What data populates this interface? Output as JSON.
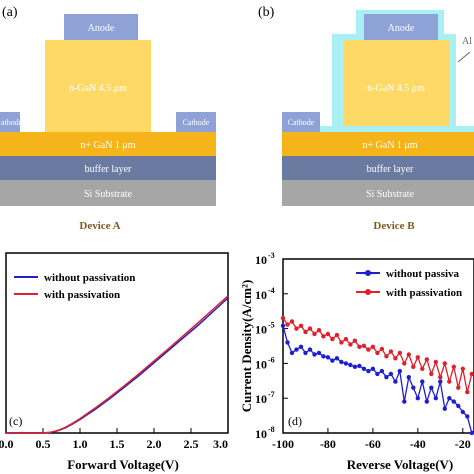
{
  "panels": {
    "a": {
      "label": "(a)",
      "caption": "Device A",
      "anode": "Anode",
      "ngan": "n-GaN  4.5 μm",
      "cathode_left": "athode",
      "cathode_right": "Cathode",
      "nplus": "n+ GaN  1 μm",
      "buffer": "buffer layer",
      "substrate": "Si Substrate"
    },
    "b": {
      "label": "(b)",
      "caption": "Device B",
      "anode": "Anode",
      "ngan": "n-GaN  4.5 μm",
      "cathode_left": "Cathode",
      "nplus": "n+ GaN  1 μm",
      "buffer": "buffer layer",
      "substrate": "Si Substrate",
      "passivation_label": "Al"
    }
  },
  "colors": {
    "anode": "#8ea2d8",
    "ngan": "#ffd966",
    "nplus": "#f4b41a",
    "buffer": "#6b7aa1",
    "substrate": "#a6a6a6",
    "passivation": "#a9f0f5",
    "caption": "#7f5a1e",
    "blue_series": "#1f1fd0",
    "red_series": "#e0202a"
  },
  "chart_data": [
    {
      "panel": "c",
      "type": "line",
      "panel_label": "(c)",
      "xlabel": "Forward Voltage(V)",
      "ylabel": "",
      "xlim": [
        0.0,
        3.0
      ],
      "ylim": [
        0,
        1
      ],
      "xticks": [
        "0.0",
        "0.5",
        "1.0",
        "1.5",
        "2.0",
        "2.5",
        "3.0"
      ],
      "legend_position": "top-left",
      "series": [
        {
          "name": "without passivation",
          "color": "#1f1fd0",
          "x": [
            0.0,
            0.5,
            0.6,
            0.7,
            0.8,
            0.9,
            1.0,
            1.2,
            1.4,
            1.6,
            1.8,
            2.0,
            2.2,
            2.4,
            2.6,
            2.8,
            3.0
          ],
          "y": [
            0.0,
            0.0,
            0.003,
            0.012,
            0.028,
            0.05,
            0.075,
            0.13,
            0.19,
            0.255,
            0.32,
            0.39,
            0.46,
            0.53,
            0.6,
            0.675,
            0.75
          ]
        },
        {
          "name": "with passivation",
          "color": "#e0202a",
          "x": [
            0.0,
            0.5,
            0.6,
            0.7,
            0.8,
            0.9,
            1.0,
            1.2,
            1.4,
            1.6,
            1.8,
            2.0,
            2.2,
            2.4,
            2.6,
            2.8,
            3.0
          ],
          "y": [
            0.0,
            0.0,
            0.004,
            0.014,
            0.031,
            0.054,
            0.08,
            0.137,
            0.198,
            0.263,
            0.33,
            0.4,
            0.47,
            0.542,
            0.614,
            0.688,
            0.762
          ]
        }
      ]
    },
    {
      "panel": "d",
      "type": "line",
      "panel_label": "(d)",
      "xlabel": "Reverse Voltage(V)",
      "ylabel": "Current Density(A/cm²)",
      "xlim": [
        -100,
        -15
      ],
      "ylim": [
        1e-08,
        0.001
      ],
      "yscale": "log",
      "xticks": [
        "-100",
        "-80",
        "-60",
        "-40",
        "-20"
      ],
      "yticks": [
        "10",
        "10",
        "10",
        "10",
        "10",
        "10"
      ],
      "ytick_exponents": [
        "-3",
        "-4",
        "-5",
        "-6",
        "-7",
        "-8"
      ],
      "legend_position": "top-right",
      "series": [
        {
          "name": "without passiva",
          "color": "#1f1fd0",
          "x": [
            -100,
            -98,
            -96,
            -94,
            -92,
            -90,
            -88,
            -86,
            -84,
            -82,
            -80,
            -78,
            -76,
            -74,
            -72,
            -70,
            -68,
            -66,
            -64,
            -62,
            -60,
            -58,
            -56,
            -54,
            -52,
            -50,
            -48,
            -46,
            -44,
            -42,
            -40,
            -38,
            -36,
            -34,
            -32,
            -30,
            -28,
            -26,
            -24,
            -22,
            -20,
            -18,
            -16
          ],
          "y": [
            1.2e-05,
            4e-06,
            2e-06,
            2.5e-06,
            3e-06,
            2e-06,
            2.5e-06,
            1.8e-06,
            2e-06,
            1.6e-06,
            1.5e-06,
            1.2e-06,
            1.4e-06,
            1.1e-06,
            1e-06,
            9e-07,
            8e-07,
            8.5e-07,
            7e-07,
            6e-07,
            7e-07,
            5e-07,
            6e-07,
            4e-07,
            5e-07,
            3e-07,
            6e-07,
            8e-08,
            4e-07,
            2e-07,
            1e-07,
            3e-07,
            8e-08,
            2e-07,
            1e-07,
            3e-07,
            5e-08,
            1e-07,
            8e-08,
            6e-08,
            4e-08,
            3e-08,
            1e-08
          ]
        },
        {
          "name": "with passivation",
          "color": "#e0202a",
          "x": [
            -100,
            -98,
            -96,
            -94,
            -92,
            -90,
            -88,
            -86,
            -84,
            -82,
            -80,
            -78,
            -76,
            -74,
            -72,
            -70,
            -68,
            -66,
            -64,
            -62,
            -60,
            -58,
            -56,
            -54,
            -52,
            -50,
            -48,
            -46,
            -44,
            -42,
            -40,
            -38,
            -36,
            -34,
            -32,
            -30,
            -28,
            -26,
            -24,
            -22,
            -20,
            -18,
            -16
          ],
          "y": [
            2e-05,
            1.3e-05,
            1.6e-05,
            1e-05,
            1.2e-05,
            8e-06,
            1e-05,
            7e-06,
            9e-06,
            6e-06,
            7e-06,
            5e-06,
            6.5e-06,
            4e-06,
            5e-06,
            3.5e-06,
            4.5e-06,
            3e-06,
            3.2e-06,
            2.5e-06,
            3e-06,
            2e-06,
            2.6e-06,
            1.6e-06,
            2.2e-06,
            1.4e-06,
            2e-06,
            1e-06,
            1.8e-06,
            8e-07,
            1.5e-06,
            7e-07,
            1.3e-06,
            5e-07,
            1.1e-06,
            4e-07,
            1e-06,
            3e-07,
            8e-07,
            2e-07,
            7e-07,
            1.5e-07,
            5e-07
          ]
        }
      ]
    }
  ]
}
